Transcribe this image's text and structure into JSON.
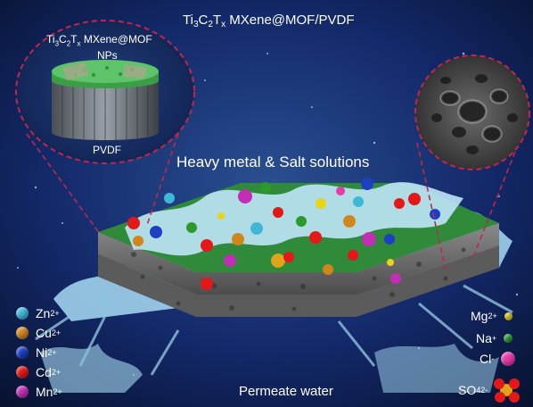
{
  "title": {
    "prefix": "Ti",
    "sub3": "3",
    "c": "C",
    "sub2": "2",
    "t": "T",
    "subx": "x",
    "rest": " MXene@MOF/PVDF"
  },
  "inset": {
    "title_prefix": "Ti",
    "sub3": "3",
    "c": "C",
    "sub2": "2",
    "t": "T",
    "subx": "x",
    "rest": " MXene@MOF",
    "nps": "NPs",
    "pvdf": "PVDF"
  },
  "feed_label": "Heavy metal & Salt solutions",
  "permeate_label": "Permeate water",
  "legend_left": [
    {
      "ion": "Zn",
      "charge": "2+",
      "color": "#3fb8d8"
    },
    {
      "ion": "Cu",
      "charge": "2+",
      "color": "#d1861c"
    },
    {
      "ion": "Ni",
      "charge": "2+",
      "color": "#1d3fc2"
    },
    {
      "ion": "Cd",
      "charge": "2+",
      "color": "#e41818"
    },
    {
      "ion": "Mn",
      "charge": "2+",
      "color": "#c12fb5"
    }
  ],
  "legend_right": [
    {
      "ion": "Mg",
      "charge": "2+",
      "color": "#e9d318"
    },
    {
      "ion": "Na",
      "charge": "+",
      "color": "#2b9a2b"
    },
    {
      "ion": "Cl",
      "charge": "-",
      "color": "#e53aa8"
    },
    {
      "ion": "SO",
      "sub": "4",
      "charge": "2-",
      "color": "#e0a41a"
    }
  ],
  "colors": {
    "background": "#0a1a3f",
    "membrane_top": "#2f8a3a",
    "membrane_side": "#6f6f6f",
    "water": "#9fd8f2",
    "dashed_outline": "#c3264b"
  }
}
